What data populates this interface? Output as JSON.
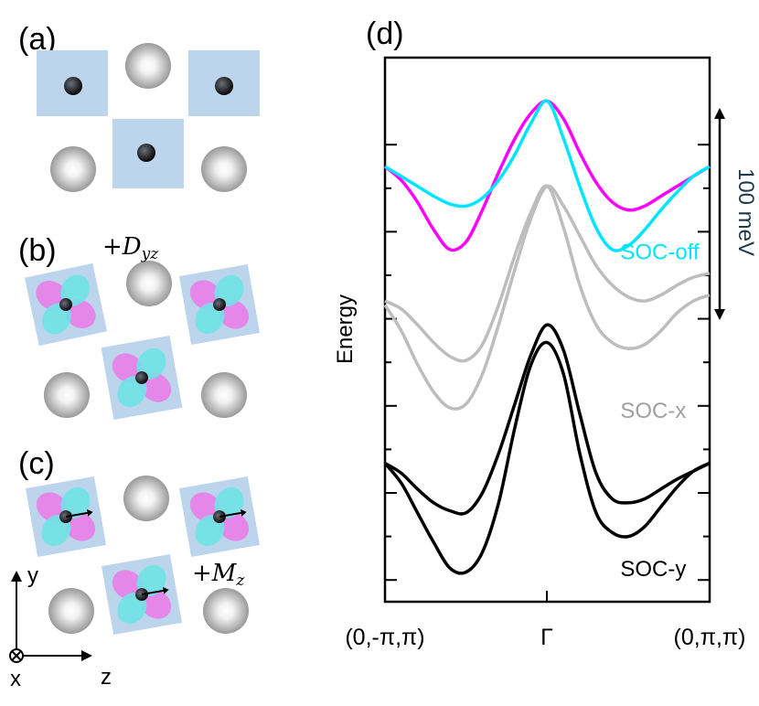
{
  "panels": {
    "a": {
      "label": "(a)"
    },
    "b": {
      "label": "(b)",
      "annotation": "+D",
      "annotation_sub": "yz"
    },
    "c": {
      "label": "(c)",
      "annotation": "+M",
      "annotation_sub": "z"
    },
    "d": {
      "label": "(d)"
    }
  },
  "axes_inset": {
    "y_label": "y",
    "z_label": "z",
    "x_label": "x"
  },
  "colors": {
    "square": "#bcd4ec",
    "lobe_magenta": "#e87ee8",
    "lobe_cyan": "#6fe3e6",
    "sphere_gray": "#a8a8a8",
    "soc_off_magenta": "#ff00ff",
    "soc_off_cyan": "#00e5ff",
    "soc_x": "#bdbdbd",
    "soc_y": "#000000",
    "scale_text": "#1e3a4c"
  },
  "chart_data": {
    "type": "line",
    "ylabel": "Energy",
    "xticks": [
      "(0,-π,π)",
      "Γ",
      "(0,π,π)"
    ],
    "x_range": [
      -1,
      1
    ],
    "y_range": [
      -220,
      55
    ],
    "scale_bar": {
      "label": "100 meV",
      "value_meV": 100
    },
    "x": [
      -1,
      -0.9,
      -0.8,
      -0.7,
      -0.6,
      -0.5,
      -0.4,
      -0.3,
      -0.2,
      -0.1,
      0,
      0.1,
      0.2,
      0.3,
      0.4,
      0.5,
      0.6,
      0.7,
      0.8,
      0.9,
      1
    ],
    "series": [
      {
        "name": "SOC-off",
        "color": "#ff00ff",
        "group": "SOC-off",
        "values": [
          0,
          -7,
          -18,
          -32,
          -42,
          -38,
          -22,
          -3,
          14,
          27,
          33,
          24,
          7,
          -8,
          -18,
          -22,
          -20,
          -15,
          -10,
          -5,
          0
        ]
      },
      {
        "name": "SOC-off",
        "color": "#00e5ff",
        "group": "SOC-off",
        "values": [
          0,
          -5,
          -10,
          -15,
          -19,
          -20,
          -16,
          -7,
          6,
          22,
          33,
          14,
          -10,
          -31,
          -42,
          -40,
          -32,
          -22,
          -13,
          -5,
          0
        ]
      },
      {
        "name": "SOC-x",
        "color": "#bdbdbd",
        "group": "SOC-x",
        "values": [
          -68,
          -72,
          -80,
          -89,
          -96,
          -98,
          -90,
          -70,
          -45,
          -23,
          -10,
          -31,
          -60,
          -80,
          -89,
          -92,
          -90,
          -83,
          -74,
          -68,
          -65
        ]
      },
      {
        "name": "SOC-x",
        "color": "#bdbdbd",
        "group": "SOC-x",
        "values": [
          -70,
          -83,
          -100,
          -114,
          -122,
          -120,
          -105,
          -80,
          -52,
          -26,
          -10,
          -20,
          -35,
          -50,
          -60,
          -66,
          -68,
          -65,
          -60,
          -56,
          -54
        ]
      },
      {
        "name": "SOC-y",
        "color": "#000000",
        "group": "SOC-y",
        "values": [
          -150,
          -160,
          -175,
          -190,
          -203,
          -205,
          -195,
          -170,
          -132,
          -100,
          -89,
          -105,
          -145,
          -175,
          -185,
          -187,
          -182,
          -172,
          -162,
          -154,
          -150
        ]
      },
      {
        "name": "SOC-y",
        "color": "#000000",
        "group": "SOC-y",
        "values": [
          -150,
          -155,
          -163,
          -170,
          -174,
          -175,
          -165,
          -145,
          -120,
          -95,
          -80,
          -93,
          -125,
          -155,
          -168,
          -170,
          -168,
          -163,
          -158,
          -154,
          -150
        ]
      }
    ],
    "series_labels": [
      {
        "text": "SOC-off",
        "color": "#00e5ff",
        "at_x": 0.45,
        "at_y": -47
      },
      {
        "text": "SOC-x",
        "color": "#a0a0a0",
        "at_x": 0.45,
        "at_y": -127
      },
      {
        "text": "SOC-y",
        "color": "#000000",
        "at_x": 0.45,
        "at_y": -207
      }
    ]
  }
}
